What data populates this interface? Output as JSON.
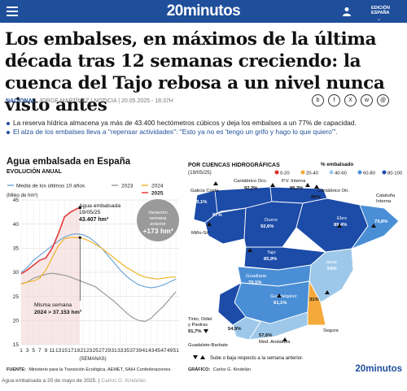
{
  "header": {
    "brand": "20minutos",
    "edition_line1": "EDICIÓN",
    "edition_line2": "ESPAÑA",
    "colors": {
      "bar": "#1f4e9a"
    },
    "icons": [
      "menu-icon",
      "user-icon",
      "chevron-down-icon"
    ]
  },
  "article": {
    "headline": "Los embalses, en máximos de la última década tras 12 semanas creciendo: la cuenca del Tajo rebosa a un nivel nunca visto antes",
    "section": "NACIONAL",
    "author": "JORGE MARTÍNEZ",
    "date": "NOTICIA | 20.05.2025 - 18:37H",
    "share_icons": [
      "bluesky-icon",
      "facebook-icon",
      "x-icon",
      "whatsapp-icon",
      "email-icon"
    ],
    "bullets": [
      "La reserva hídrica almacena ya más de 43.400 hectómetros cúbicos y deja los embalses a un 77% de capacidad.",
      "El alza de los embalses lleva a \"repensar actividades\": \"Esto ya no es 'tengo un grifo y hago lo que quiero'\"."
    ],
    "caption": "Agua embalsada a 20 de mayo de 2025.",
    "caption_credit": "Carlos G. Kindelán"
  },
  "chart": {
    "title": "Agua embalsada en España",
    "subtitle": "EVOLUCIÓN ANUAL",
    "units": "(Miles de hm³)",
    "xlabel": "(SEMANAS)",
    "legend": [
      "Media de los últimos 10 años",
      "2023",
      "2024",
      "2025"
    ],
    "colors": {
      "media": "#6fa7d8",
      "y2023": "#9a9a9a",
      "y2024": "#f0b52a",
      "y2025": "#e23b3b",
      "current_fill": "#f2d4d4"
    },
    "annotation_current": [
      "Agua embalsada",
      "19/05/25"
    ],
    "annotation_current_value": "43.407 hm³",
    "annotation_prev": [
      "Misma semana"
    ],
    "annotation_prev_value": "2024 > 37.153 hm³",
    "bubble_text": [
      "Variación",
      "semana",
      "anterior"
    ],
    "bubble_value": "+173 hm³",
    "source_label": "FUENTE:",
    "source": "Ministerio para la Transición Ecológica, AEMET, SAIH Confederaciones",
    "chart_data": {
      "type": "line",
      "title": "Agua embalsada en España",
      "ylabel": "(Miles de hm³)",
      "xlabel": "(SEMANAS)",
      "ylim": [
        15,
        45
      ],
      "xlim": [
        1,
        52
      ],
      "x_ticks": [
        1,
        3,
        5,
        7,
        9,
        11,
        13,
        15,
        17,
        19,
        21,
        23,
        25,
        27,
        29,
        31,
        33,
        35,
        37,
        39,
        41,
        43,
        45,
        47,
        49,
        51
      ],
      "y_ticks": [
        15,
        20,
        25,
        30,
        35,
        40,
        45
      ],
      "series": [
        {
          "name": "Media de los últimos 10 años",
          "x": [
            1,
            3,
            5,
            7,
            9,
            11,
            13,
            15,
            17,
            19,
            21,
            23,
            25,
            27,
            29,
            31,
            33,
            35,
            37,
            39,
            41,
            43,
            45,
            47,
            49,
            51
          ],
          "values": [
            30,
            31,
            32.5,
            33.5,
            34.5,
            35.5,
            36.5,
            37.3,
            37.8,
            38,
            37.8,
            37.2,
            36.2,
            35,
            33.5,
            32,
            30.5,
            29.2,
            28.2,
            27.4,
            27,
            26.8,
            27,
            27.4,
            28,
            28.6
          ]
        },
        {
          "name": "2023",
          "x": [
            1,
            3,
            5,
            7,
            9,
            11,
            13,
            15,
            17,
            19,
            21,
            23,
            25,
            27,
            29,
            31,
            33,
            35,
            37,
            39,
            41,
            43,
            45,
            47,
            49,
            51
          ],
          "values": [
            27.6,
            28,
            28.8,
            29.2,
            29.6,
            29.8,
            29.6,
            29.4,
            29,
            28.5,
            28,
            27.5,
            27,
            26,
            25,
            24,
            22.8,
            21.6,
            20.6,
            20,
            19.8,
            20.5,
            21.8,
            23,
            24.5,
            26
          ]
        },
        {
          "name": "2024",
          "x": [
            1,
            3,
            5,
            7,
            9,
            11,
            13,
            15,
            17,
            19,
            21,
            23,
            25,
            27,
            29,
            31,
            33,
            35,
            37,
            39,
            41,
            43,
            45,
            47,
            49,
            51
          ],
          "values": [
            27.5,
            28,
            28.2,
            28.8,
            30.5,
            33,
            35.5,
            37,
            37.2,
            37.2,
            37,
            36.5,
            35.8,
            35,
            34,
            33,
            32,
            31,
            30.3,
            29.5,
            29,
            28.8,
            28.6,
            28.8,
            29,
            29
          ]
        },
        {
          "name": "2025",
          "x": [
            1,
            3,
            5,
            7,
            9,
            11,
            13,
            15,
            17,
            19,
            20
          ],
          "values": [
            29.7,
            30.5,
            31.5,
            32.5,
            33,
            35,
            38,
            41.5,
            42.5,
            43.2,
            43.4
          ]
        }
      ],
      "annotations": [
        {
          "text": "Agua embalsada 19/05/25 43.407 hm³",
          "x": 20,
          "y": 43.4
        },
        {
          "text": "Misma semana 2024 > 37.153 hm³",
          "x": 20,
          "y": 37.2
        },
        {
          "text": "Variación semana anterior +173 hm³"
        }
      ],
      "legend": "top"
    }
  },
  "map": {
    "title": "POR CUENCAS HIDROGRÁFICAS",
    "date": "(19/05/25)",
    "legend_title": "% embalsado",
    "legend_items": [
      {
        "label": "0-20",
        "color": "#d9302c"
      },
      {
        "label": "20-40",
        "color": "#f4a93a"
      },
      {
        "label": "40-60",
        "color": "#9ec8ea"
      },
      {
        "label": "60-80",
        "color": "#4a8ed6"
      },
      {
        "label": "80-100",
        "color": "#1c4ba8"
      }
    ],
    "basins": [
      {
        "name": "Galicia Costa",
        "value": "80,1%"
      },
      {
        "name": "Miño-Sil",
        "value": "87%"
      },
      {
        "name": "Cantábrico Occ.",
        "value": "92,2%"
      },
      {
        "name": "P.V. Interna",
        "value": "95,2%"
      },
      {
        "name": "Cantábrico Ori.",
        "value": "89%"
      },
      {
        "name": "Cataluña Interna",
        "value": "79,8%"
      },
      {
        "name": "Duero",
        "value": "92,6%"
      },
      {
        "name": "Ebro",
        "value": "89,4%"
      },
      {
        "name": "Tajo",
        "value": "85,9%"
      },
      {
        "name": "Júcar",
        "value": "64%"
      },
      {
        "name": "Guadiana",
        "value": "70,1%"
      },
      {
        "name": "Guadalquivir",
        "value": "61,1%"
      },
      {
        "name": "Segura",
        "value": "31%"
      },
      {
        "name": "Tinto, Odiel y Piedras",
        "value": "91,7%"
      },
      {
        "name": "Guadalete-Barbate",
        "value": "54,9%"
      },
      {
        "name": "Med. Andaluza",
        "value": "57,6%"
      }
    ],
    "note": "Sube o baja respecto a la semana anterior.",
    "graphic_label": "GRÁFICO:",
    "graphic_credit": "Carlos G. Kindelán",
    "logo": "20minutos"
  }
}
